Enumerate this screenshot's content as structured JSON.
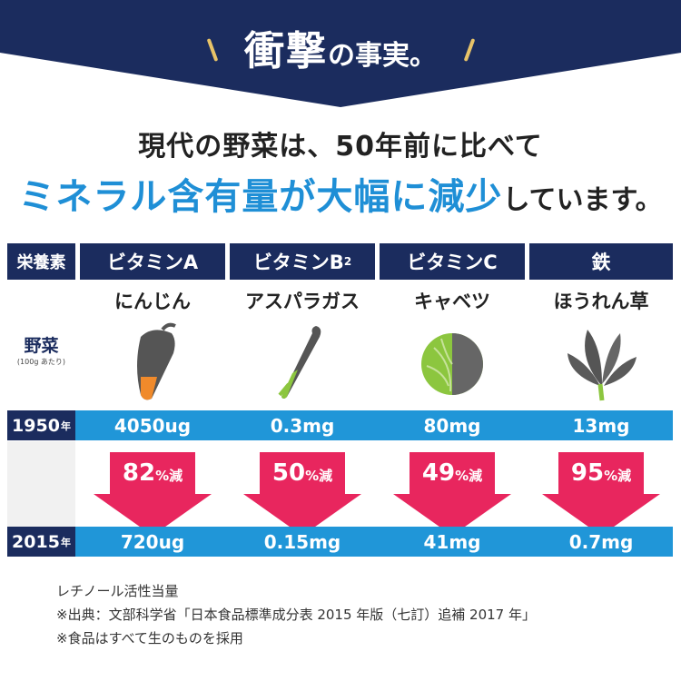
{
  "banner": {
    "title_big": "衝撃",
    "title_small": "の事実。"
  },
  "headline": {
    "line1": "現代の野菜は、50年前に比べて",
    "line2_accent": "ミネラル含有量が大幅に減少",
    "line2_rest": "しています。"
  },
  "table": {
    "corner": "栄養素",
    "columns": [
      {
        "nutrient": "ビタミンA",
        "vegetable": "にんじん",
        "v1950": "4050ug",
        "reduction": "82",
        "v2015": "720ug"
      },
      {
        "nutrient": "ビタミンB",
        "nutrient_sub": "2",
        "vegetable": "アスパラガス",
        "v1950": "0.3mg",
        "reduction": "50",
        "v2015": "0.15mg"
      },
      {
        "nutrient": "ビタミンC",
        "vegetable": "キャベツ",
        "v1950": "80mg",
        "reduction": "49",
        "v2015": "41mg"
      },
      {
        "nutrient": "鉄",
        "vegetable": "ほうれん草",
        "v1950": "13mg",
        "reduction": "95",
        "v2015": "0.7mg"
      }
    ],
    "row_label": "野菜",
    "row_label_sub": "(100g あたり)",
    "year1": "1950",
    "year2": "2015",
    "year_suffix": "年",
    "reduction_unit": "%減"
  },
  "notes": [
    "レチノール活性当量",
    "※出典：文部科学省「日本食品標準成分表 2015 年版（七訂）追補 2017 年」",
    "※食品はすべて生のものを採用"
  ],
  "colors": {
    "navy": "#1b2c5e",
    "blue": "#2096d8",
    "arrow": "#e8265e",
    "gold": "#e8c368"
  }
}
